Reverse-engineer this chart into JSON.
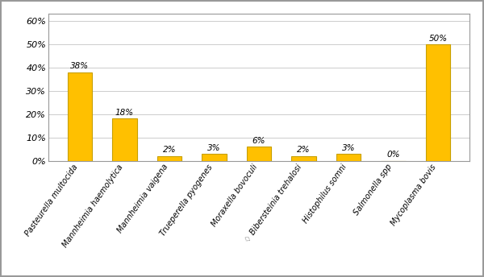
{
  "categories": [
    "Pasteurella multocida",
    "Mannheimia haemolytica",
    "Mannheimia vaigena",
    "Trueperella pyogenes",
    "Moraxella bovoculi",
    "♢ Bibersteinia trehalosi",
    "Histophilus somni",
    "Salmonella spp",
    "Mycoplasma bovis"
  ],
  "values": [
    38,
    18,
    2,
    3,
    6,
    2,
    3,
    0,
    50
  ],
  "labels": [
    "38%",
    "18%",
    "2%",
    "3%",
    "6%",
    "2%",
    "3%",
    "0%",
    "50%"
  ],
  "bar_color": "#FFC000",
  "bar_edge_color": "#C8A000",
  "background_color": "#FFFFFF",
  "border_color": "#999999",
  "ylim": [
    0,
    63
  ],
  "yticks": [
    0,
    10,
    20,
    30,
    40,
    50,
    60
  ],
  "ytick_labels": [
    "0%",
    "10%",
    "20%",
    "30%",
    "40%",
    "50%",
    "60%"
  ],
  "grid_color": "#CCCCCC",
  "spine_color": "#999999",
  "label_fontsize": 7.0,
  "tick_label_fontsize": 8.0,
  "value_label_fontsize": 7.5,
  "rotation": 55
}
